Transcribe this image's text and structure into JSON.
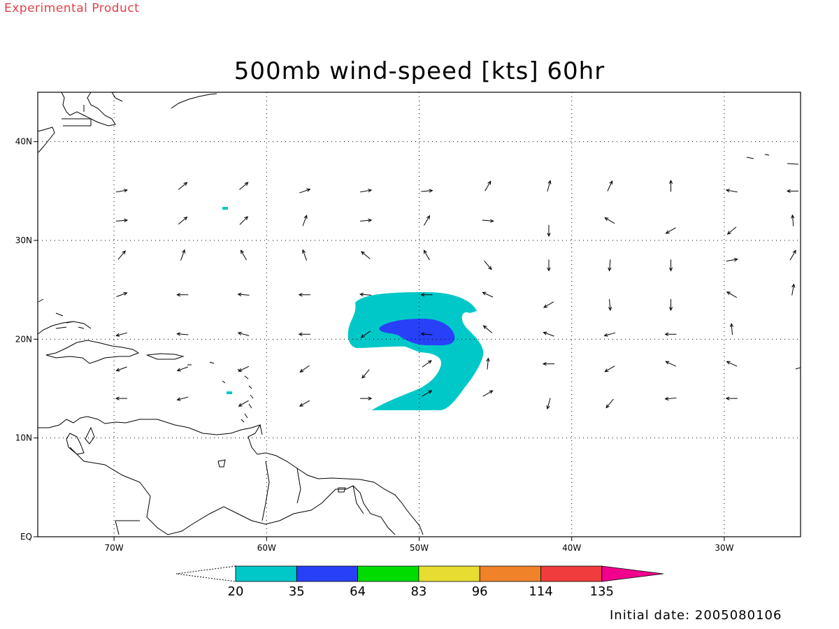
{
  "header": {
    "product_label": "Experimental Product",
    "title": "500mb wind-speed [kts] 60hr"
  },
  "footer": {
    "initial_date": "Initial date: 2005080106"
  },
  "map": {
    "lon_range": [
      -75,
      -25
    ],
    "lat_range": [
      0,
      45
    ],
    "grid": "dotted",
    "x_ticks": [
      {
        "value": -70,
        "label": "70W"
      },
      {
        "value": -60,
        "label": "60W"
      },
      {
        "value": -50,
        "label": "50W"
      },
      {
        "value": -40,
        "label": "40W"
      },
      {
        "value": -30,
        "label": "30W"
      }
    ],
    "y_ticks": [
      {
        "value": 40,
        "label": "40N"
      },
      {
        "value": 30,
        "label": "30N"
      },
      {
        "value": 20,
        "label": "20N"
      },
      {
        "value": 10,
        "label": "10N"
      },
      {
        "value": 0,
        "label": "EQ"
      }
    ]
  },
  "colorbar": {
    "levels": [
      "20",
      "35",
      "64",
      "83",
      "96",
      "114",
      "135"
    ],
    "colors": [
      "#00c8c8",
      "#2840f8",
      "#00dc00",
      "#e6dc32",
      "#f0822a",
      "#f03c3c",
      "#f0008c"
    ]
  },
  "wind_vectors": [
    {
      "lon": -69.5,
      "lat": 35.0,
      "dir": 80
    },
    {
      "lon": -65.5,
      "lat": 35.5,
      "dir": 50
    },
    {
      "lon": -61.5,
      "lat": 35.5,
      "dir": 50
    },
    {
      "lon": -57.5,
      "lat": 35.0,
      "dir": 70
    },
    {
      "lon": -53.5,
      "lat": 35.0,
      "dir": 80
    },
    {
      "lon": -49.5,
      "lat": 35.0,
      "dir": 85
    },
    {
      "lon": -45.5,
      "lat": 35.5,
      "dir": 30
    },
    {
      "lon": -41.5,
      "lat": 35.5,
      "dir": 15
    },
    {
      "lon": -37.5,
      "lat": 35.5,
      "dir": 25
    },
    {
      "lon": -33.5,
      "lat": 35.5,
      "dir": 0
    },
    {
      "lon": -29.5,
      "lat": 35.0,
      "dir": 280
    },
    {
      "lon": -25.5,
      "lat": 35.0,
      "dir": 270
    },
    {
      "lon": -69.5,
      "lat": 32.0,
      "dir": 85
    },
    {
      "lon": -65.5,
      "lat": 32.0,
      "dir": 50
    },
    {
      "lon": -61.5,
      "lat": 32.0,
      "dir": 45
    },
    {
      "lon": -57.5,
      "lat": 32.0,
      "dir": 20
    },
    {
      "lon": -53.5,
      "lat": 32.0,
      "dir": 85
    },
    {
      "lon": -49.5,
      "lat": 32.0,
      "dir": 30
    },
    {
      "lon": -45.5,
      "lat": 32.0,
      "dir": 95
    },
    {
      "lon": -41.5,
      "lat": 31.0,
      "dir": 180
    },
    {
      "lon": -37.5,
      "lat": 32.0,
      "dir": 300
    },
    {
      "lon": -33.5,
      "lat": 31.0,
      "dir": 240
    },
    {
      "lon": -29.5,
      "lat": 31.0,
      "dir": 230
    },
    {
      "lon": -25.5,
      "lat": 32.0,
      "dir": 355
    },
    {
      "lon": -69.5,
      "lat": 28.5,
      "dir": 40
    },
    {
      "lon": -65.5,
      "lat": 28.5,
      "dir": 20
    },
    {
      "lon": -61.5,
      "lat": 28.5,
      "dir": 330
    },
    {
      "lon": -57.5,
      "lat": 28.5,
      "dir": 340
    },
    {
      "lon": -53.5,
      "lat": 28.5,
      "dir": 310
    },
    {
      "lon": -49.5,
      "lat": 28.5,
      "dir": 330
    },
    {
      "lon": -45.5,
      "lat": 27.5,
      "dir": 140
    },
    {
      "lon": -41.5,
      "lat": 27.5,
      "dir": 180
    },
    {
      "lon": -37.5,
      "lat": 27.5,
      "dir": 185
    },
    {
      "lon": -33.5,
      "lat": 27.5,
      "dir": 180
    },
    {
      "lon": -29.5,
      "lat": 28.0,
      "dir": 80
    },
    {
      "lon": -25.5,
      "lat": 28.5,
      "dir": 30
    },
    {
      "lon": -69.5,
      "lat": 24.5,
      "dir": 70
    },
    {
      "lon": -65.5,
      "lat": 24.5,
      "dir": 270
    },
    {
      "lon": -61.5,
      "lat": 24.5,
      "dir": 275
    },
    {
      "lon": -57.5,
      "lat": 24.5,
      "dir": 270
    },
    {
      "lon": -53.5,
      "lat": 24.5,
      "dir": 275
    },
    {
      "lon": -49.5,
      "lat": 24.5,
      "dir": 270
    },
    {
      "lon": -45.5,
      "lat": 24.5,
      "dir": 295
    },
    {
      "lon": -41.5,
      "lat": 23.5,
      "dir": 240
    },
    {
      "lon": -37.5,
      "lat": 23.5,
      "dir": 175
    },
    {
      "lon": -33.5,
      "lat": 23.5,
      "dir": 180
    },
    {
      "lon": -29.5,
      "lat": 24.5,
      "dir": 300
    },
    {
      "lon": -25.5,
      "lat": 25.0,
      "dir": 10
    },
    {
      "lon": -69.5,
      "lat": 20.5,
      "dir": 255
    },
    {
      "lon": -65.5,
      "lat": 20.5,
      "dir": 275
    },
    {
      "lon": -61.5,
      "lat": 20.5,
      "dir": 285
    },
    {
      "lon": -57.5,
      "lat": 20.5,
      "dir": 270
    },
    {
      "lon": -53.5,
      "lat": 20.5,
      "dir": 235
    },
    {
      "lon": -49.5,
      "lat": 20.5,
      "dir": 275
    },
    {
      "lon": -45.5,
      "lat": 21.0,
      "dir": 310
    },
    {
      "lon": -41.5,
      "lat": 20.5,
      "dir": 290
    },
    {
      "lon": -37.5,
      "lat": 20.5,
      "dir": 255
    },
    {
      "lon": -33.5,
      "lat": 20.5,
      "dir": 270
    },
    {
      "lon": -29.5,
      "lat": 21.0,
      "dir": 355
    },
    {
      "lon": -69.5,
      "lat": 17.0,
      "dir": 250
    },
    {
      "lon": -65.5,
      "lat": 17.0,
      "dir": 250
    },
    {
      "lon": -61.5,
      "lat": 17.0,
      "dir": 245
    },
    {
      "lon": -57.5,
      "lat": 17.0,
      "dir": 235
    },
    {
      "lon": -53.5,
      "lat": 16.5,
      "dir": 220
    },
    {
      "lon": -49.5,
      "lat": 17.5,
      "dir": 55
    },
    {
      "lon": -45.5,
      "lat": 17.5,
      "dir": 5
    },
    {
      "lon": -41.5,
      "lat": 17.5,
      "dir": 270
    },
    {
      "lon": -37.5,
      "lat": 17.0,
      "dir": 240
    },
    {
      "lon": -33.5,
      "lat": 17.5,
      "dir": 295
    },
    {
      "lon": -29.5,
      "lat": 17.5,
      "dir": 295
    },
    {
      "lon": -69.5,
      "lat": 14.0,
      "dir": 270
    },
    {
      "lon": -65.5,
      "lat": 14.0,
      "dir": 255
    },
    {
      "lon": -61.5,
      "lat": 13.5,
      "dir": 240
    },
    {
      "lon": -57.5,
      "lat": 13.5,
      "dir": 240
    },
    {
      "lon": -53.5,
      "lat": 14.0,
      "dir": 90
    },
    {
      "lon": -49.5,
      "lat": 14.5,
      "dir": 60
    },
    {
      "lon": -45.5,
      "lat": 14.5,
      "dir": 60
    },
    {
      "lon": -41.5,
      "lat": 13.5,
      "dir": 195
    },
    {
      "lon": -37.5,
      "lat": 13.5,
      "dir": 220
    },
    {
      "lon": -33.5,
      "lat": 14.0,
      "dir": 265
    },
    {
      "lon": -29.5,
      "lat": 14.0,
      "dir": 270
    }
  ]
}
